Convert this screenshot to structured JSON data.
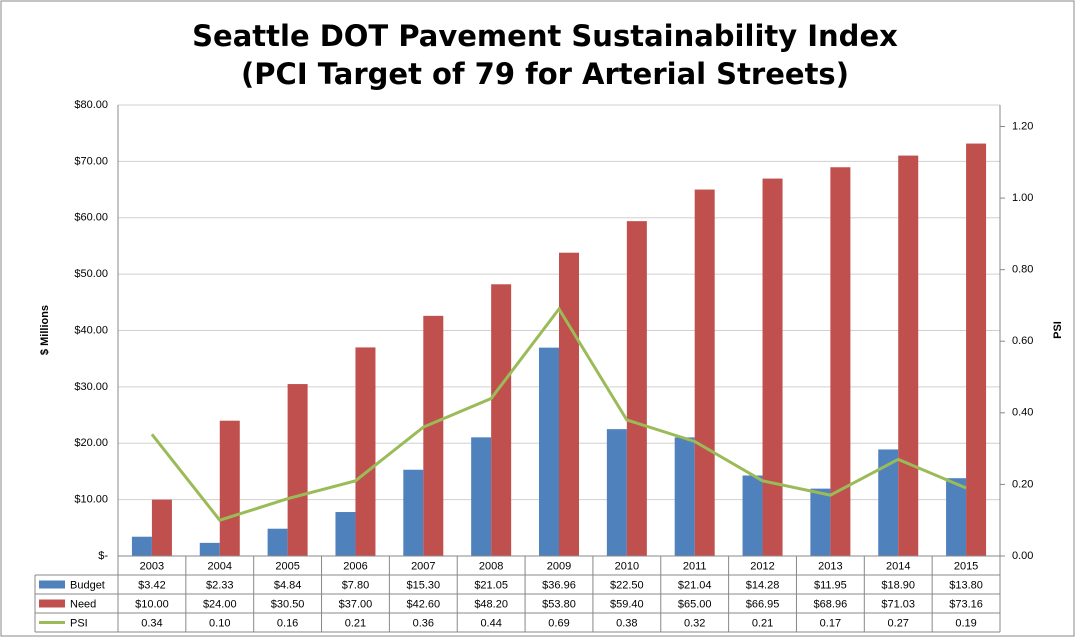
{
  "chart_data": {
    "type": "bar_line",
    "title": "Seattle DOT Pavement Sustainability Index",
    "subtitle": "(PCI Target of 79 for Arterial Streets)",
    "ylabel": "$ Millions",
    "y2label": "PSI",
    "categories": [
      "2003",
      "2004",
      "2005",
      "2006",
      "2007",
      "2008",
      "2009",
      "2010",
      "2011",
      "2012",
      "2013",
      "2014",
      "2015"
    ],
    "series": [
      {
        "name": "Budget",
        "color": "#4f81bd",
        "type": "bar",
        "values": [
          3.42,
          2.33,
          4.84,
          7.8,
          15.3,
          21.05,
          36.96,
          22.5,
          21.04,
          14.28,
          11.95,
          18.9,
          13.8
        ],
        "value_labels": [
          "$3.42",
          "$2.33",
          "$4.84",
          "$7.80",
          "$15.30",
          "$21.05",
          "$36.96",
          "$22.50",
          "$21.04",
          "$14.28",
          "$11.95",
          "$18.90",
          "$13.80"
        ]
      },
      {
        "name": "Need",
        "color": "#c0504d",
        "type": "bar",
        "values": [
          10.0,
          24.0,
          30.5,
          37.0,
          42.6,
          48.2,
          53.8,
          59.4,
          65.0,
          66.95,
          68.96,
          71.03,
          73.16
        ],
        "value_labels": [
          "$10.00",
          "$24.00",
          "$30.50",
          "$37.00",
          "$42.60",
          "$48.20",
          "$53.80",
          "$59.40",
          "$65.00",
          "$66.95",
          "$68.96",
          "$71.03",
          "$73.16"
        ]
      },
      {
        "name": "PSI",
        "color": "#9bbb59",
        "type": "line",
        "axis": "y2",
        "values": [
          0.34,
          0.1,
          0.16,
          0.21,
          0.36,
          0.44,
          0.69,
          0.38,
          0.32,
          0.21,
          0.17,
          0.27,
          0.19
        ],
        "value_labels": [
          "0.34",
          "0.10",
          "0.16",
          "0.21",
          "0.36",
          "0.44",
          "0.69",
          "0.38",
          "0.32",
          "0.21",
          "0.17",
          "0.27",
          "0.19"
        ]
      }
    ],
    "ylim": [
      0,
      80
    ],
    "yticks": [
      {
        "value": 0,
        "label": "$-"
      },
      {
        "value": 10,
        "label": "$10.00"
      },
      {
        "value": 20,
        "label": "$20.00"
      },
      {
        "value": 30,
        "label": "$30.00"
      },
      {
        "value": 40,
        "label": "$40.00"
      },
      {
        "value": 50,
        "label": "$50.00"
      },
      {
        "value": 60,
        "label": "$60.00"
      },
      {
        "value": 70,
        "label": "$70.00"
      },
      {
        "value": 80,
        "label": "$80.00"
      }
    ],
    "y2lim": [
      0,
      1.26
    ],
    "y2ticks": [
      {
        "value": 0,
        "label": "0.00"
      },
      {
        "value": 0.2,
        "label": "0.20"
      },
      {
        "value": 0.4,
        "label": "0.40"
      },
      {
        "value": 0.6,
        "label": "0.60"
      },
      {
        "value": 0.8,
        "label": "0.80"
      },
      {
        "value": 1.0,
        "label": "1.00"
      },
      {
        "value": 1.2,
        "label": "1.20"
      }
    ],
    "grid": true
  }
}
